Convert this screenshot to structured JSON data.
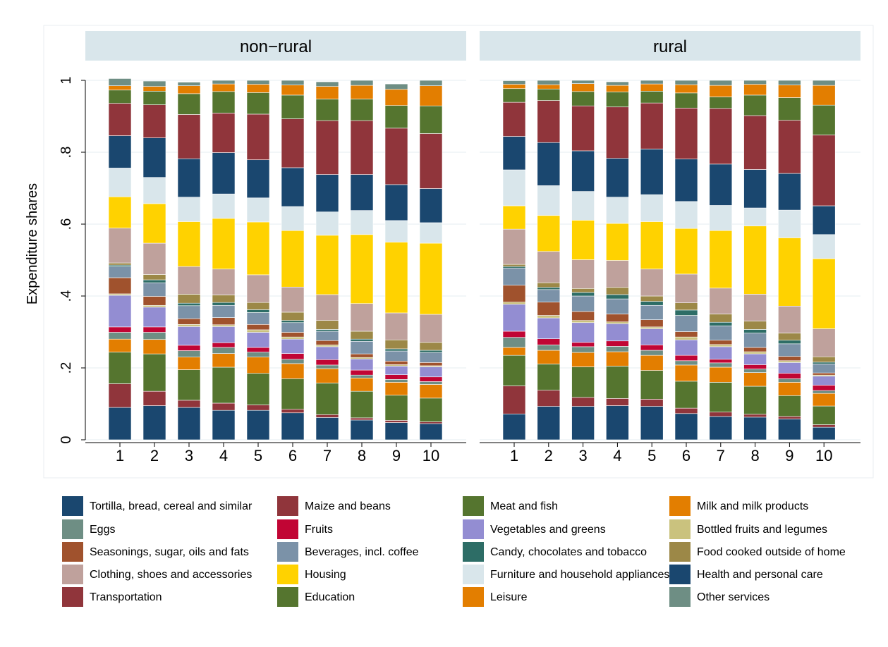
{
  "chart_data": {
    "type": "bar",
    "stacked": true,
    "ylabel": "Expenditure shares",
    "ylim": [
      0,
      1
    ],
    "yticks": [
      {
        "value": 0,
        "label": "0"
      },
      {
        "value": 0.2,
        "label": ".2"
      },
      {
        "value": 0.4,
        "label": ".4"
      },
      {
        "value": 0.6,
        "label": ".6"
      },
      {
        "value": 0.8,
        "label": ".8"
      },
      {
        "value": 1,
        "label": "1"
      }
    ],
    "categories": [
      "1",
      "2",
      "3",
      "4",
      "5",
      "6",
      "7",
      "8",
      "9",
      "10"
    ],
    "legend_position": "bottom",
    "series": [
      {
        "name": "Tortilla, bread, cereal and similar",
        "color": "#1a476f"
      },
      {
        "name": "Maize and beans",
        "color": "#90353b"
      },
      {
        "name": "Meat and fish",
        "color": "#55752f"
      },
      {
        "name": "Milk and milk products",
        "color": "#e37e00"
      },
      {
        "name": "Eggs",
        "color": "#6e8e84"
      },
      {
        "name": "Fruits",
        "color": "#c10534"
      },
      {
        "name": "Vegetables and greens",
        "color": "#938dd2"
      },
      {
        "name": "Bottled fruits and legumes",
        "color": "#cac27e"
      },
      {
        "name": "Seasonings, sugar, oils and fats",
        "color": "#a0522d"
      },
      {
        "name": "Beverages, incl. coffee",
        "color": "#7b92a8"
      },
      {
        "name": "Candy, chocolates and tobacco",
        "color": "#2d6d66"
      },
      {
        "name": "Food cooked outside of home",
        "color": "#9c8847"
      },
      {
        "name": "Clothing, shoes and accessories",
        "color": "#bfa19c"
      },
      {
        "name": "Housing",
        "color": "#ffd200"
      },
      {
        "name": "Furniture and household appliances",
        "color": "#d9e6eb"
      },
      {
        "name": "Health and personal care",
        "color": "#1a476f"
      },
      {
        "name": "Transportation",
        "color": "#90353b"
      },
      {
        "name": "Education",
        "color": "#55752f"
      },
      {
        "name": "Leisure",
        "color": "#e37e00"
      },
      {
        "name": "Other services",
        "color": "#6e8e84"
      }
    ],
    "panels": [
      {
        "title": "non−rural",
        "values": [
          [
            0.09,
            0.066,
            0.088,
            0.036,
            0.019,
            0.015,
            0.088,
            0.004,
            0.045,
            0.031,
            0.004,
            0.006,
            0.097,
            0.087,
            0.08,
            0.09,
            0.09,
            0.037,
            0.012,
            0.02
          ],
          [
            0.095,
            0.04,
            0.104,
            0.04,
            0.02,
            0.015,
            0.055,
            0.005,
            0.025,
            0.038,
            0.008,
            0.015,
            0.087,
            0.11,
            0.073,
            0.11,
            0.092,
            0.038,
            0.013,
            0.015
          ],
          [
            0.09,
            0.02,
            0.085,
            0.035,
            0.018,
            0.015,
            0.052,
            0.006,
            0.016,
            0.036,
            0.007,
            0.025,
            0.077,
            0.125,
            0.068,
            0.107,
            0.123,
            0.058,
            0.022,
            0.01
          ],
          [
            0.082,
            0.02,
            0.1,
            0.038,
            0.017,
            0.013,
            0.045,
            0.005,
            0.02,
            0.034,
            0.008,
            0.021,
            0.072,
            0.141,
            0.068,
            0.115,
            0.11,
            0.06,
            0.021,
            0.01
          ],
          [
            0.082,
            0.015,
            0.088,
            0.045,
            0.014,
            0.013,
            0.042,
            0.007,
            0.015,
            0.033,
            0.008,
            0.02,
            0.077,
            0.147,
            0.067,
            0.106,
            0.127,
            0.06,
            0.023,
            0.011
          ],
          [
            0.075,
            0.01,
            0.085,
            0.042,
            0.012,
            0.016,
            0.04,
            0.006,
            0.013,
            0.027,
            0.006,
            0.023,
            0.07,
            0.157,
            0.067,
            0.108,
            0.136,
            0.066,
            0.028,
            0.013
          ],
          [
            0.062,
            0.008,
            0.088,
            0.04,
            0.01,
            0.015,
            0.036,
            0.005,
            0.012,
            0.026,
            0.005,
            0.025,
            0.072,
            0.165,
            0.065,
            0.104,
            0.15,
            0.06,
            0.035,
            0.013
          ],
          [
            0.055,
            0.006,
            0.074,
            0.037,
            0.008,
            0.014,
            0.031,
            0.004,
            0.01,
            0.035,
            0.006,
            0.022,
            0.077,
            0.192,
            0.067,
            0.1,
            0.15,
            0.06,
            0.038,
            0.014
          ],
          [
            0.048,
            0.006,
            0.07,
            0.036,
            0.008,
            0.013,
            0.024,
            0.004,
            0.01,
            0.028,
            0.006,
            0.025,
            0.075,
            0.197,
            0.06,
            0.1,
            0.157,
            0.063,
            0.045,
            0.015
          ],
          [
            0.045,
            0.005,
            0.066,
            0.038,
            0.008,
            0.013,
            0.028,
            0.003,
            0.009,
            0.028,
            0.006,
            0.022,
            0.078,
            0.198,
            0.057,
            0.095,
            0.153,
            0.077,
            0.056,
            0.015
          ]
        ]
      },
      {
        "title": "rural",
        "values": [
          [
            0.072,
            0.078,
            0.085,
            0.022,
            0.028,
            0.017,
            0.075,
            0.006,
            0.047,
            0.048,
            0.004,
            0.006,
            0.098,
            0.065,
            0.1,
            0.093,
            0.095,
            0.038,
            0.012,
            0.01
          ],
          [
            0.093,
            0.045,
            0.073,
            0.038,
            0.015,
            0.017,
            0.058,
            0.007,
            0.037,
            0.035,
            0.006,
            0.013,
            0.087,
            0.1,
            0.083,
            0.12,
            0.117,
            0.032,
            0.012,
            0.012
          ],
          [
            0.093,
            0.025,
            0.085,
            0.04,
            0.016,
            0.012,
            0.055,
            0.006,
            0.025,
            0.043,
            0.01,
            0.011,
            0.08,
            0.11,
            0.08,
            0.113,
            0.125,
            0.04,
            0.022,
            0.009
          ],
          [
            0.095,
            0.02,
            0.09,
            0.04,
            0.015,
            0.015,
            0.048,
            0.005,
            0.022,
            0.042,
            0.012,
            0.02,
            0.075,
            0.103,
            0.073,
            0.108,
            0.143,
            0.042,
            0.018,
            0.01
          ],
          [
            0.093,
            0.02,
            0.08,
            0.042,
            0.014,
            0.015,
            0.045,
            0.005,
            0.02,
            0.04,
            0.011,
            0.015,
            0.075,
            0.132,
            0.075,
            0.127,
            0.128,
            0.033,
            0.02,
            0.01
          ],
          [
            0.073,
            0.015,
            0.075,
            0.045,
            0.012,
            0.015,
            0.043,
            0.008,
            0.015,
            0.045,
            0.015,
            0.02,
            0.08,
            0.127,
            0.075,
            0.118,
            0.142,
            0.042,
            0.023,
            0.012
          ],
          [
            0.065,
            0.012,
            0.083,
            0.042,
            0.012,
            0.01,
            0.035,
            0.006,
            0.012,
            0.04,
            0.01,
            0.023,
            0.072,
            0.16,
            0.07,
            0.115,
            0.155,
            0.032,
            0.032,
            0.014
          ],
          [
            0.063,
            0.008,
            0.078,
            0.038,
            0.01,
            0.012,
            0.03,
            0.006,
            0.012,
            0.04,
            0.01,
            0.023,
            0.075,
            0.19,
            0.05,
            0.107,
            0.15,
            0.057,
            0.03,
            0.011
          ],
          [
            0.058,
            0.007,
            0.058,
            0.037,
            0.01,
            0.015,
            0.03,
            0.005,
            0.012,
            0.035,
            0.01,
            0.02,
            0.075,
            0.19,
            0.077,
            0.102,
            0.148,
            0.063,
            0.035,
            0.013
          ],
          [
            0.035,
            0.007,
            0.052,
            0.035,
            0.008,
            0.015,
            0.025,
            0.003,
            0.006,
            0.025,
            0.005,
            0.015,
            0.078,
            0.195,
            0.067,
            0.08,
            0.197,
            0.083,
            0.055,
            0.014
          ]
        ]
      }
    ]
  }
}
